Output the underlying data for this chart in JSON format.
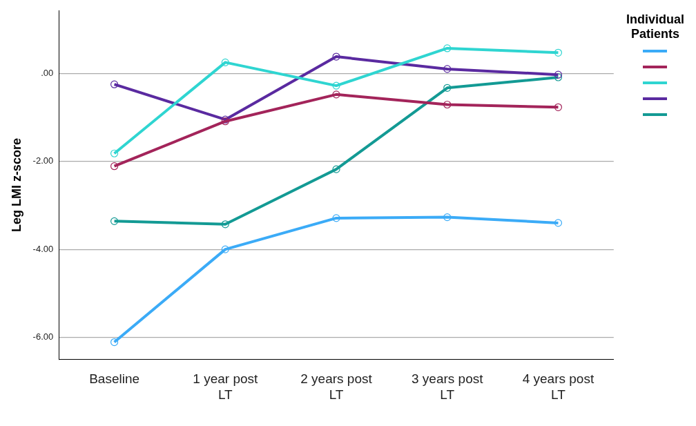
{
  "chart_data": {
    "type": "line",
    "ylabel": "Leg LMI z-score",
    "legend_title": "Individual Patients",
    "categories": [
      "Baseline",
      "1 year post\nLT",
      "2 years post\nLT",
      "3 years post\nLT",
      "4 years post\nLT"
    ],
    "series": [
      {
        "color": "#3babf7",
        "values": [
          -6.11,
          -4.0,
          -3.29,
          -3.27,
          -3.4
        ]
      },
      {
        "color": "#a3245a",
        "values": [
          -2.11,
          -1.09,
          -0.48,
          -0.71,
          -0.77
        ]
      },
      {
        "color": "#2fd5d1",
        "values": [
          -1.82,
          0.25,
          -0.28,
          0.57,
          0.47
        ]
      },
      {
        "color": "#5a2aa0",
        "values": [
          -0.25,
          -1.05,
          0.38,
          0.1,
          -0.03
        ]
      },
      {
        "color": "#139a94",
        "values": [
          -3.36,
          -3.43,
          -2.18,
          -0.33,
          -0.09
        ]
      }
    ],
    "ylim": [
      -6.5,
      1.42
    ],
    "yticks": [
      {
        "value": -6,
        "label": "-6.00"
      },
      {
        "value": -4,
        "label": "-4.00"
      },
      {
        "value": -2,
        "label": "-2.00"
      },
      {
        "value": 0,
        "label": ".00"
      }
    ],
    "grid": "y",
    "marker": "circle",
    "line_style": "solid"
  }
}
